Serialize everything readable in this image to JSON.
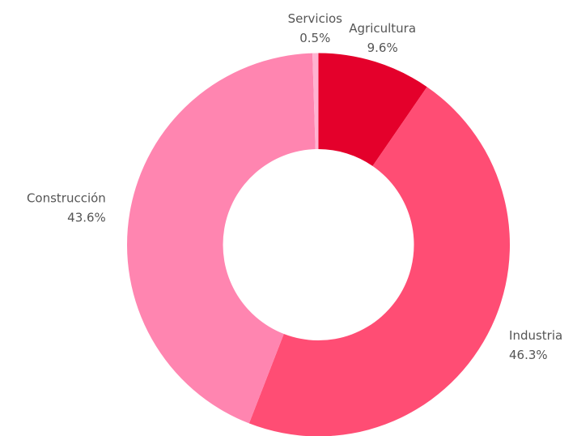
{
  "chart_data": {
    "type": "donut",
    "categories": [
      "Agricultura",
      "Industria",
      "Construcción",
      "Servicios"
    ],
    "values": [
      9.6,
      46.3,
      43.6,
      0.5
    ],
    "value_labels": [
      "9.6%",
      "46.3%",
      "43.6%",
      "0.5%"
    ],
    "colors": [
      "#e4002b",
      "#ff4d74",
      "#ff85b0",
      "#ffb3d1"
    ]
  }
}
